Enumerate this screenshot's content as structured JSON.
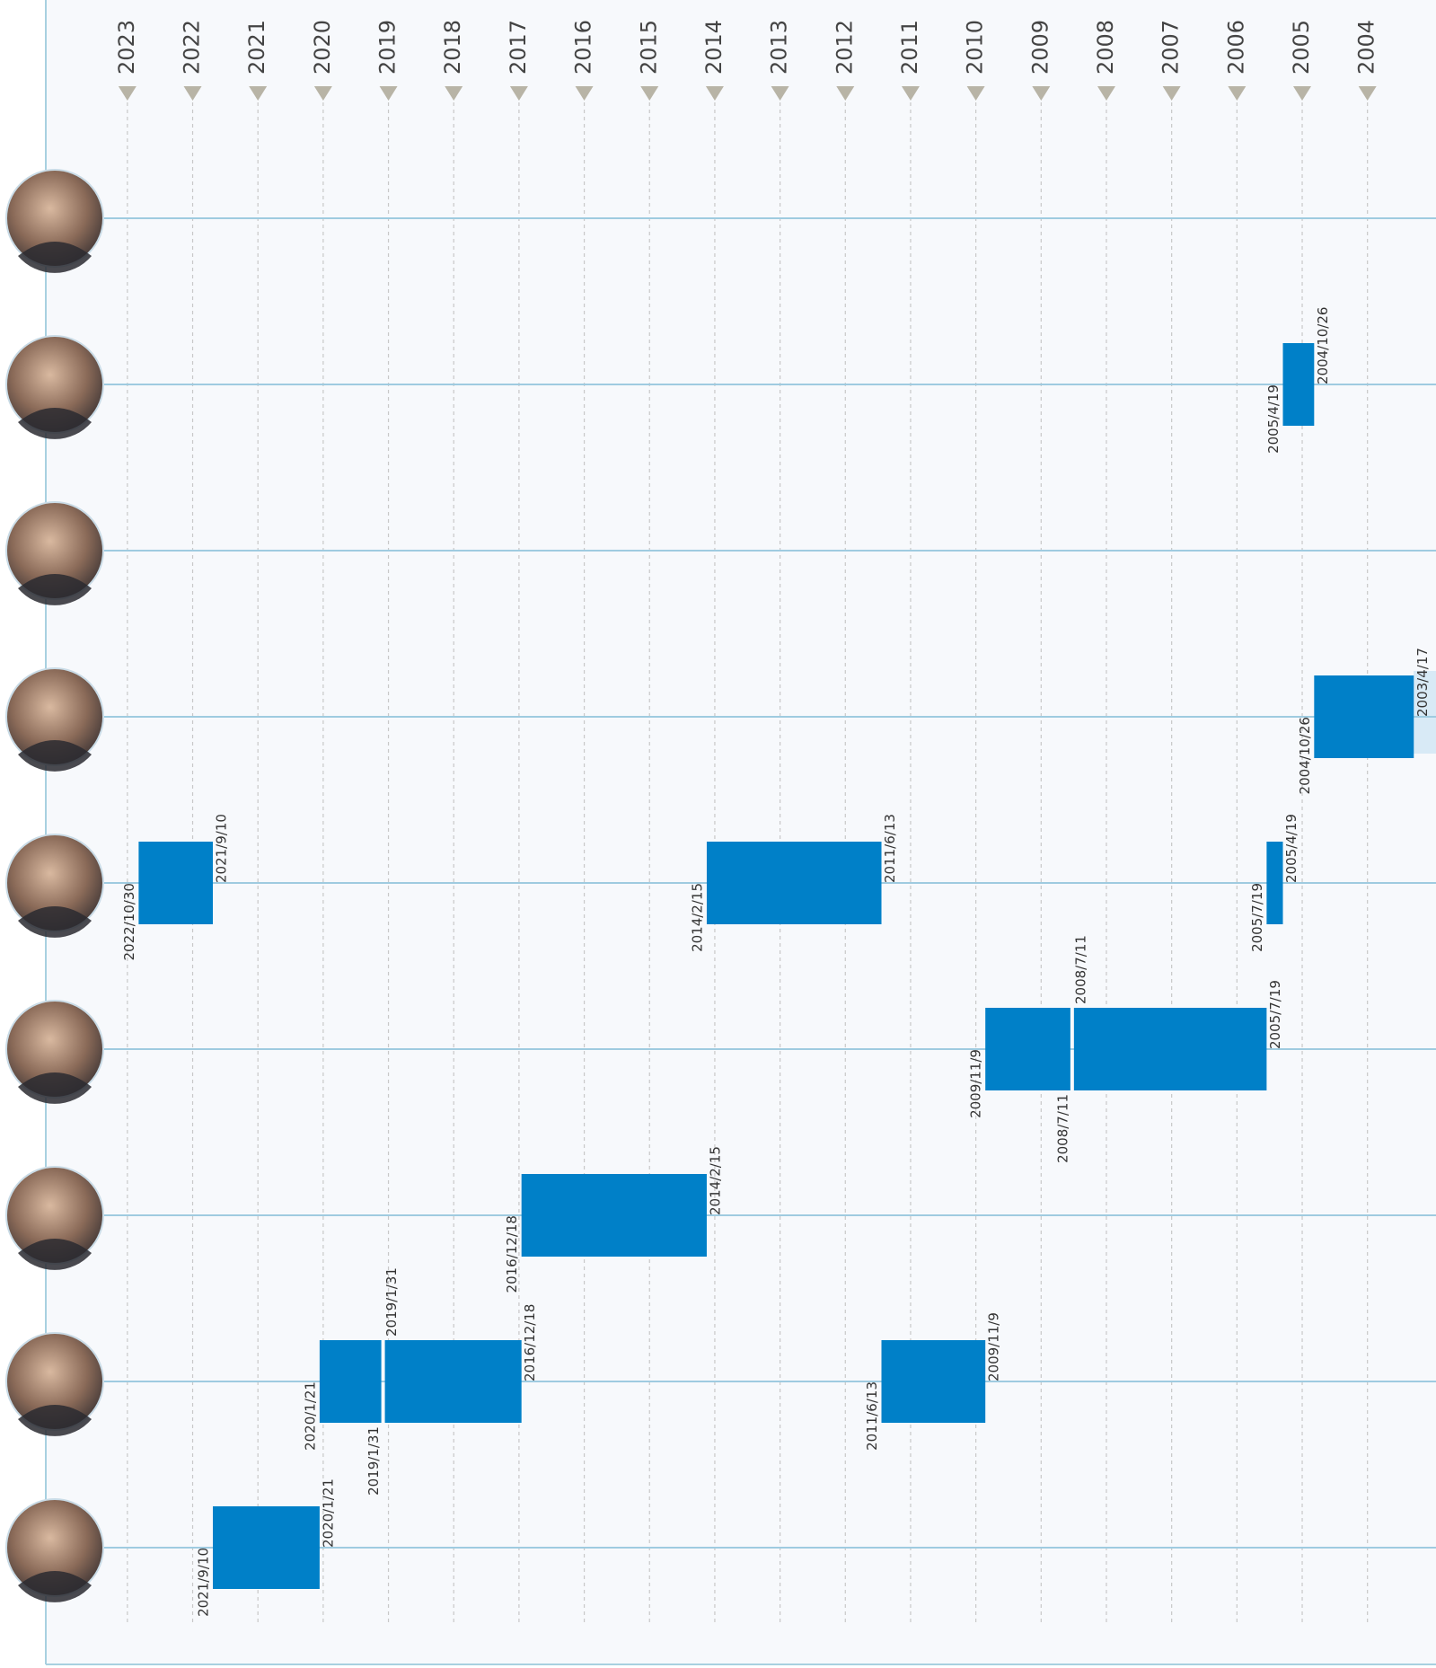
{
  "chart_data": {
    "type": "timeline",
    "xlim": [
      2024.25,
      2002.95
    ],
    "xticks": [
      2023,
      2022,
      2021,
      2020,
      2019,
      2018,
      2017,
      2016,
      2015,
      2014,
      2013,
      2012,
      2011,
      2010,
      2009,
      2008,
      2007,
      2006,
      2005,
      2004
    ],
    "color": "#0080c8",
    "grid": true,
    "rows": [
      {
        "bars": []
      },
      {
        "bars": [
          {
            "start": "2004/10/26",
            "end": "2005/4/19"
          }
        ]
      },
      {
        "bars": []
      },
      {
        "bars": [
          {
            "start": "2003/4/17",
            "end": "2004/10/26"
          }
        ]
      },
      {
        "bars": [
          {
            "start": "2005/4/19",
            "end": "2005/7/19"
          },
          {
            "start": "2011/6/13",
            "end": "2014/2/15"
          },
          {
            "start": "2021/9/10",
            "end": "2022/10/30"
          }
        ]
      },
      {
        "bars": [
          {
            "start": "2005/7/19",
            "end": "2008/7/11"
          },
          {
            "start": "2008/7/11",
            "end": "2009/11/9"
          }
        ]
      },
      {
        "bars": [
          {
            "start": "2014/2/15",
            "end": "2016/12/18"
          }
        ]
      },
      {
        "bars": [
          {
            "start": "2009/11/9",
            "end": "2011/6/13"
          },
          {
            "start": "2016/12/18",
            "end": "2019/1/31"
          },
          {
            "start": "2019/1/31",
            "end": "2020/1/21"
          }
        ]
      },
      {
        "bars": [
          {
            "start": "2020/1/21",
            "end": "2021/9/10"
          }
        ]
      }
    ]
  }
}
